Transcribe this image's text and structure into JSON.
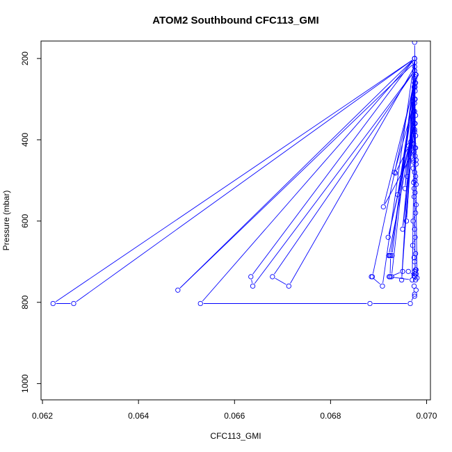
{
  "chart_data": {
    "type": "line",
    "title": "ATOM2 Southbound CFC113_GMI",
    "xlabel": "CFC113_GMI",
    "ylabel": "Pressure (mbar)",
    "xlim": [
      0.06197,
      0.07008
    ],
    "ylim": [
      1040,
      157
    ],
    "y_reversed": true,
    "x_ticks": [
      0.062,
      0.064,
      0.066,
      0.068,
      0.07
    ],
    "x_tick_labels": [
      "0.062",
      "0.064",
      "0.066",
      "0.068",
      "0.070"
    ],
    "y_ticks": [
      200,
      400,
      600,
      800,
      1000
    ],
    "y_tick_labels": [
      "200",
      "400",
      "600",
      "800",
      "1000"
    ],
    "grid": false,
    "legend": "none",
    "series_color": "#0000ff",
    "series": [
      {
        "marker": "open-circle",
        "x": [
          0.06975,
          0.06976,
          0.06974,
          0.06975,
          0.06973,
          0.06976,
          0.06975,
          0.06977,
          0.06973,
          0.06967,
          0.06975,
          0.06974,
          0.06976,
          0.06978,
          0.06973,
          0.06978,
          0.06972,
          0.06975,
          0.06977,
          0.06976,
          0.06973,
          0.06978,
          0.06974,
          0.06976,
          0.06974,
          0.06978,
          0.06977,
          0.06972,
          0.06975,
          0.06976,
          0.06971,
          0.06977,
          0.06974,
          0.06975,
          0.06978,
          0.06976,
          0.06975,
          0.06976,
          0.06933,
          0.06935,
          0.06963,
          0.06955,
          0.06978,
          0.0696,
          0.06975,
          0.06973,
          0.06975,
          0.06977,
          0.0691,
          0.06975,
          0.0694,
          0.06976,
          0.06958,
          0.06975,
          0.0695,
          0.06977,
          0.0692,
          0.06975,
          0.06921,
          0.06923,
          0.06928,
          0.06975,
          0.06927,
          0.06922,
          0.0697,
          0.06976,
          0.06975,
          0.06634,
          0.06638,
          0.06975,
          0.06679,
          0.06713,
          0.06975,
          0.06977,
          0.06887,
          0.06885,
          0.06908,
          0.06975,
          0.06948,
          0.06977,
          0.06925,
          0.06924,
          0.0695,
          0.06962,
          0.0698,
          0.06975,
          0.06482,
          0.06975,
          0.06222,
          0.06265,
          0.06975,
          0.06529,
          0.06882,
          0.06966,
          0.06975,
          0.06975,
          0.06978,
          0.06974,
          0.06977,
          0.06976,
          0.06974,
          0.06978,
          0.06975,
          0.06977
        ],
        "y": [
          160,
          245,
          270,
          300,
          330,
          360,
          375,
          390,
          410,
          405,
          420,
          430,
          440,
          450,
          455,
          460,
          470,
          480,
          490,
          500,
          505,
          510,
          520,
          530,
          540,
          560,
          580,
          600,
          620,
          640,
          660,
          680,
          690,
          700,
          720,
          730,
          380,
          300,
          480,
          482,
          415,
          520,
          240,
          490,
          250,
          450,
          330,
          420,
          565,
          260,
          535,
          280,
          600,
          310,
          620,
          340,
          640,
          360,
          685,
          685,
          685,
          230,
          737,
          737,
          745,
          270,
          200,
          737,
          760,
          230,
          737,
          760,
          220,
          240,
          737,
          737,
          760,
          200,
          745,
          260,
          685,
          737,
          724,
          724,
          740,
          210,
          770,
          200,
          803,
          803,
          200,
          803,
          803,
          803,
          780,
          785,
          770,
          760,
          745,
          737,
          735,
          730,
          724,
          720
        ]
      }
    ]
  }
}
